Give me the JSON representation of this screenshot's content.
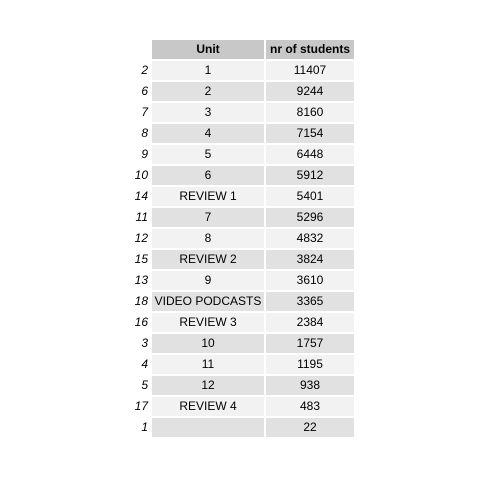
{
  "table": {
    "headers": {
      "unit": "Unit",
      "count": "nr of students"
    },
    "rows": [
      {
        "index": "2",
        "unit": "1",
        "count": "11407"
      },
      {
        "index": "6",
        "unit": "2",
        "count": "9244"
      },
      {
        "index": "7",
        "unit": "3",
        "count": "8160"
      },
      {
        "index": "8",
        "unit": "4",
        "count": "7154"
      },
      {
        "index": "9",
        "unit": "5",
        "count": "6448"
      },
      {
        "index": "10",
        "unit": "6",
        "count": "5912"
      },
      {
        "index": "14",
        "unit": "REVIEW 1",
        "count": "5401"
      },
      {
        "index": "11",
        "unit": "7",
        "count": "5296"
      },
      {
        "index": "12",
        "unit": "8",
        "count": "4832"
      },
      {
        "index": "15",
        "unit": "REVIEW 2",
        "count": "3824"
      },
      {
        "index": "13",
        "unit": "9",
        "count": "3610"
      },
      {
        "index": "18",
        "unit": "VIDEO PODCASTS",
        "count": "3365"
      },
      {
        "index": "16",
        "unit": "REVIEW 3",
        "count": "2384"
      },
      {
        "index": "3",
        "unit": "10",
        "count": "1757"
      },
      {
        "index": "4",
        "unit": "11",
        "count": "1195"
      },
      {
        "index": "5",
        "unit": "12",
        "count": "938"
      },
      {
        "index": "17",
        "unit": "REVIEW 4",
        "count": "483"
      },
      {
        "index": "1",
        "unit": "",
        "count": "22"
      }
    ]
  }
}
